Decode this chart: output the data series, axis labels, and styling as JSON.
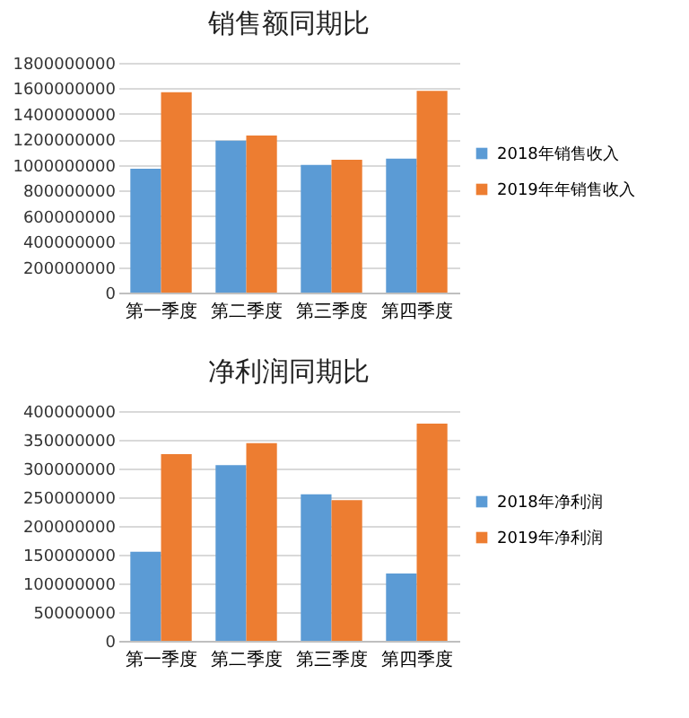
{
  "chart_data": [
    {
      "type": "bar",
      "title": "销售额同期比",
      "categories": [
        "第一季度",
        "第二季度",
        "第三季度",
        "第四季度"
      ],
      "series": [
        {
          "name": "2018年销售收入",
          "color": "#5b9bd5",
          "values": [
            970000000,
            1190000000,
            1000000000,
            1050000000
          ]
        },
        {
          "name": "2019年年销售收入",
          "color": "#ed7d31",
          "values": [
            1570000000,
            1230000000,
            1040000000,
            1580000000
          ]
        }
      ],
      "ylim": [
        0,
        1800000000
      ],
      "yticks": [
        0,
        200000000,
        400000000,
        600000000,
        800000000,
        1000000000,
        1200000000,
        1400000000,
        1600000000,
        1800000000
      ],
      "grid": "y",
      "legend": "right"
    },
    {
      "type": "bar",
      "title": "净利润同期比",
      "categories": [
        "第一季度",
        "第二季度",
        "第三季度",
        "第四季度"
      ],
      "series": [
        {
          "name": "2018年净利润",
          "color": "#5b9bd5",
          "values": [
            155000000,
            306000000,
            255000000,
            117000000
          ]
        },
        {
          "name": "2019年净利润",
          "color": "#ed7d31",
          "values": [
            325000000,
            344000000,
            245000000,
            378000000
          ]
        }
      ],
      "ylim": [
        0,
        400000000
      ],
      "yticks": [
        0,
        50000000,
        100000000,
        150000000,
        200000000,
        250000000,
        300000000,
        350000000,
        400000000
      ],
      "grid": "y",
      "legend": "right"
    }
  ]
}
